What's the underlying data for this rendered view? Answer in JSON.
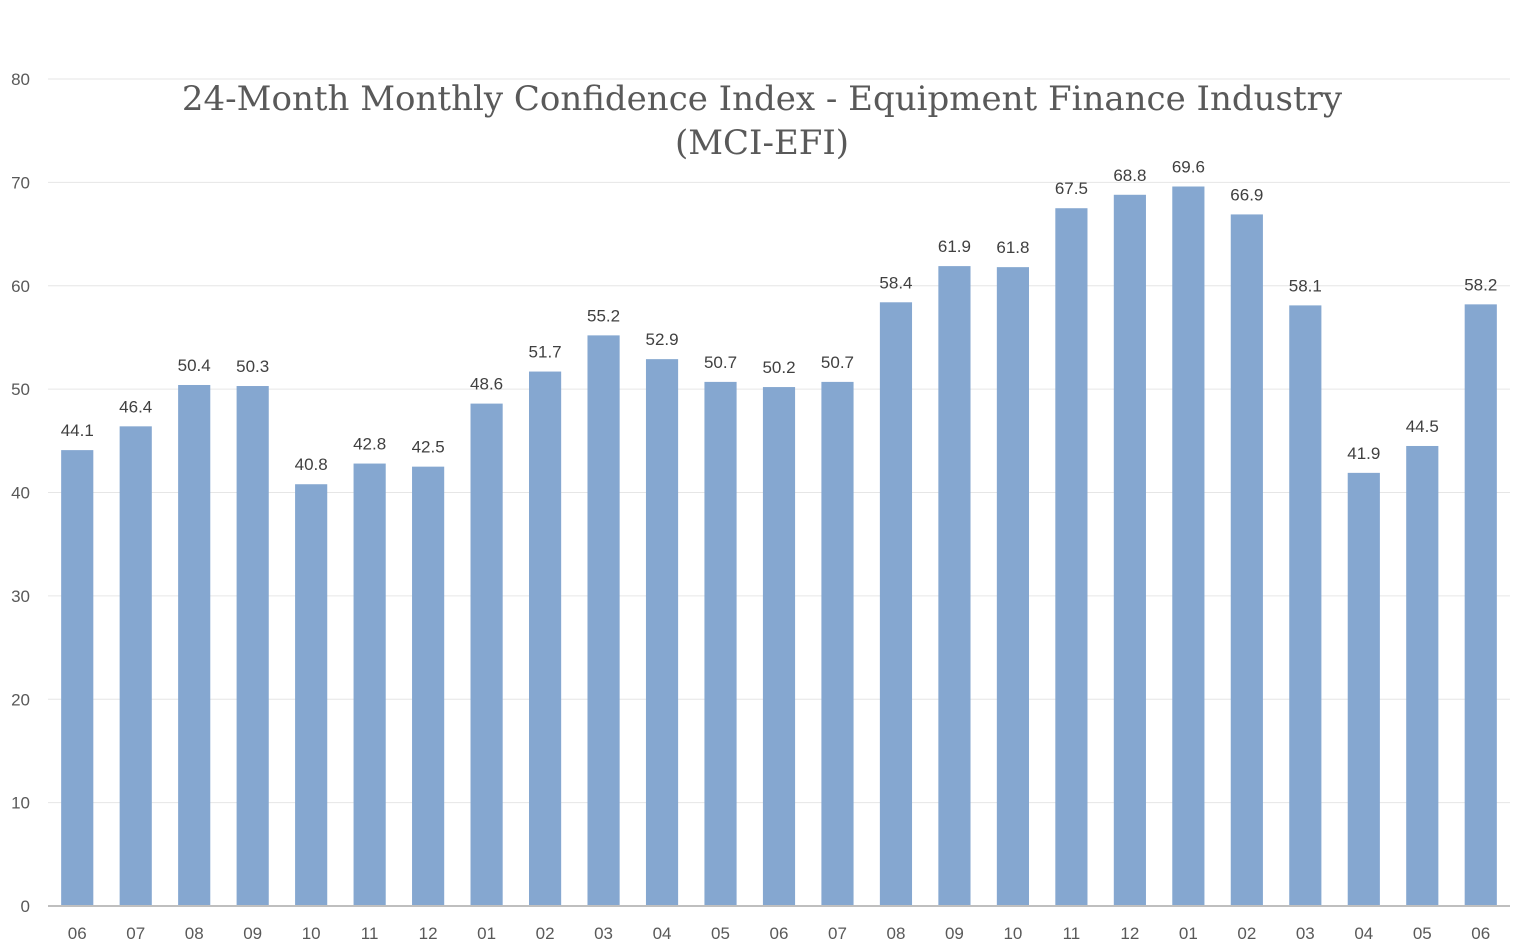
{
  "chart_data": {
    "type": "bar",
    "title": "24-Month Monthly Confidence Index - Equipment Finance Industry",
    "title_line2": "(MCI-EFI)",
    "xlabel": "",
    "ylabel": "",
    "ylim": [
      0,
      80
    ],
    "yticks": [
      0,
      10,
      20,
      30,
      40,
      50,
      60,
      70,
      80
    ],
    "grid": true,
    "bar_color": "#85a7d0",
    "categories": [
      "06",
      "07",
      "08",
      "09",
      "10",
      "11",
      "12",
      "01",
      "02",
      "03",
      "04",
      "05",
      "06",
      "07",
      "08",
      "09",
      "10",
      "11",
      "12",
      "01",
      "02",
      "03",
      "04",
      "05",
      "06"
    ],
    "values": [
      44.1,
      46.4,
      50.4,
      50.3,
      40.8,
      42.8,
      42.5,
      48.6,
      51.7,
      55.2,
      52.9,
      50.7,
      50.2,
      50.7,
      58.4,
      61.9,
      61.8,
      67.5,
      68.8,
      69.6,
      66.9,
      58.1,
      41.9,
      44.5,
      58.2
    ],
    "data_labels": [
      "44.1",
      "46.4",
      "50.4",
      "50.3",
      "40.8",
      "42.8",
      "42.5",
      "48.6",
      "51.7",
      "55.2",
      "52.9",
      "50.7",
      "50.2",
      "50.7",
      "58.4",
      "61.9",
      "61.8",
      "67.5",
      "68.8",
      "69.6",
      "66.9",
      "58.1",
      "41.9",
      "44.5",
      "58.2"
    ]
  }
}
